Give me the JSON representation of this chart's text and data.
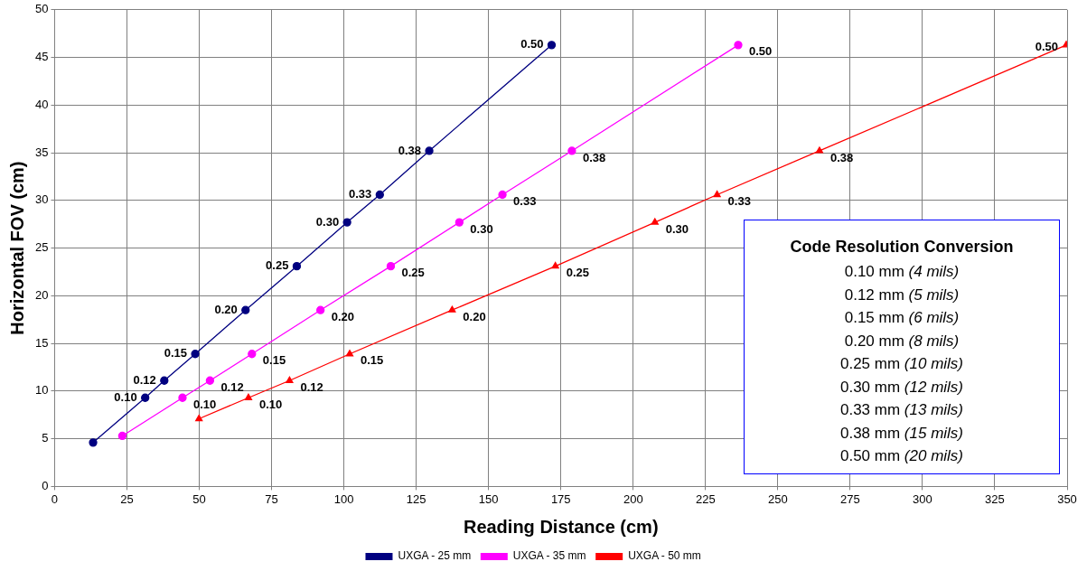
{
  "chart_data": {
    "type": "line",
    "xlabel": "Reading Distance (cm)",
    "ylabel": "Horizontal FOV (cm)",
    "xlim": [
      0,
      350
    ],
    "xticks": [
      0,
      25,
      50,
      75,
      100,
      125,
      150,
      175,
      200,
      225,
      250,
      275,
      300,
      325,
      350
    ],
    "ylim": [
      0,
      50
    ],
    "yticks": [
      0,
      5,
      10,
      15,
      20,
      25,
      30,
      35,
      40,
      45,
      50
    ],
    "grid": true,
    "legend": "bottom",
    "line_style": "solid",
    "series": [
      {
        "name": "UXGA - 25 mm",
        "color": "#000080",
        "marker": "circle",
        "x": [
          13.3,
          31.3,
          37.9,
          48.6,
          66.0,
          83.7,
          101.1,
          112.4,
          129.5,
          171.8
        ],
        "values": [
          4.6,
          9.3,
          11.1,
          13.9,
          18.5,
          23.1,
          27.7,
          30.6,
          35.2,
          46.3
        ]
      },
      {
        "name": "UXGA - 35 mm",
        "color": "#ff00ff",
        "marker": "circle",
        "x": [
          23.4,
          44.2,
          53.7,
          68.2,
          91.9,
          116.2,
          139.9,
          154.8,
          178.8,
          236.3
        ],
        "values": [
          5.3,
          9.3,
          11.1,
          13.9,
          18.5,
          23.1,
          27.7,
          30.6,
          35.2,
          46.3
        ]
      },
      {
        "name": "UXGA - 50 mm",
        "color": "#ff0000",
        "marker": "triangle",
        "x": [
          49.9,
          67.0,
          81.2,
          102.0,
          137.4,
          173.1,
          207.5,
          229.0,
          264.4,
          349.7
        ],
        "values": [
          7.1,
          9.3,
          11.1,
          13.9,
          18.5,
          23.1,
          27.7,
          30.6,
          35.2,
          46.3
        ]
      }
    ],
    "annotations": [
      "Code Resolution Conversion",
      "0.10 mm (4 mils)",
      "0.12 mm (5 mils)",
      "0.15 mm (6 mils)",
      "0.20 mm (8 mils)",
      "0.25 mm (10 mils)",
      "0.30 mm (12 mils)",
      "0.33 mm (13 mils)",
      "0.38 mm (15 mils)",
      "0.50 mm (20 mils)",
      {
        "text": "0.10",
        "x": 31.3,
        "y": 9.3
      },
      {
        "text": "0.12",
        "x": 37.9,
        "y": 11.1
      },
      {
        "text": "0.15",
        "x": 48.6,
        "y": 13.9
      },
      {
        "text": "0.20",
        "x": 66.0,
        "y": 18.5
      },
      {
        "text": "0.25",
        "x": 83.7,
        "y": 23.1
      },
      {
        "text": "0.30",
        "x": 101.1,
        "y": 27.7
      },
      {
        "text": "0.33",
        "x": 112.4,
        "y": 30.6
      },
      {
        "text": "0.38",
        "x": 129.5,
        "y": 35.2
      },
      {
        "text": "0.50",
        "x": 171.8,
        "y": 46.3
      },
      {
        "text": "0.10",
        "x": 44.2,
        "y": 9.3
      },
      {
        "text": "0.12",
        "x": 53.7,
        "y": 11.1
      },
      {
        "text": "0.15",
        "x": 68.2,
        "y": 13.9
      },
      {
        "text": "0.20",
        "x": 91.9,
        "y": 18.5
      },
      {
        "text": "0.25",
        "x": 116.2,
        "y": 23.1
      },
      {
        "text": "0.30",
        "x": 139.9,
        "y": 27.7
      },
      {
        "text": "0.33",
        "x": 154.8,
        "y": 30.6
      },
      {
        "text": "0.38",
        "x": 178.8,
        "y": 35.2
      },
      {
        "text": "0.50",
        "x": 236.3,
        "y": 46.3
      },
      {
        "text": "0.10",
        "x": 67.0,
        "y": 9.3
      },
      {
        "text": "0.12",
        "x": 81.2,
        "y": 11.1
      },
      {
        "text": "0.15",
        "x": 102.0,
        "y": 13.9
      },
      {
        "text": "0.20",
        "x": 137.4,
        "y": 18.5
      },
      {
        "text": "0.25",
        "x": 173.1,
        "y": 23.1
      },
      {
        "text": "0.30",
        "x": 207.5,
        "y": 27.7
      },
      {
        "text": "0.33",
        "x": 229.0,
        "y": 30.6
      },
      {
        "text": "0.38",
        "x": 264.4,
        "y": 35.2
      },
      {
        "text": "0.50",
        "x": 349.7,
        "y": 46.3
      }
    ]
  }
}
